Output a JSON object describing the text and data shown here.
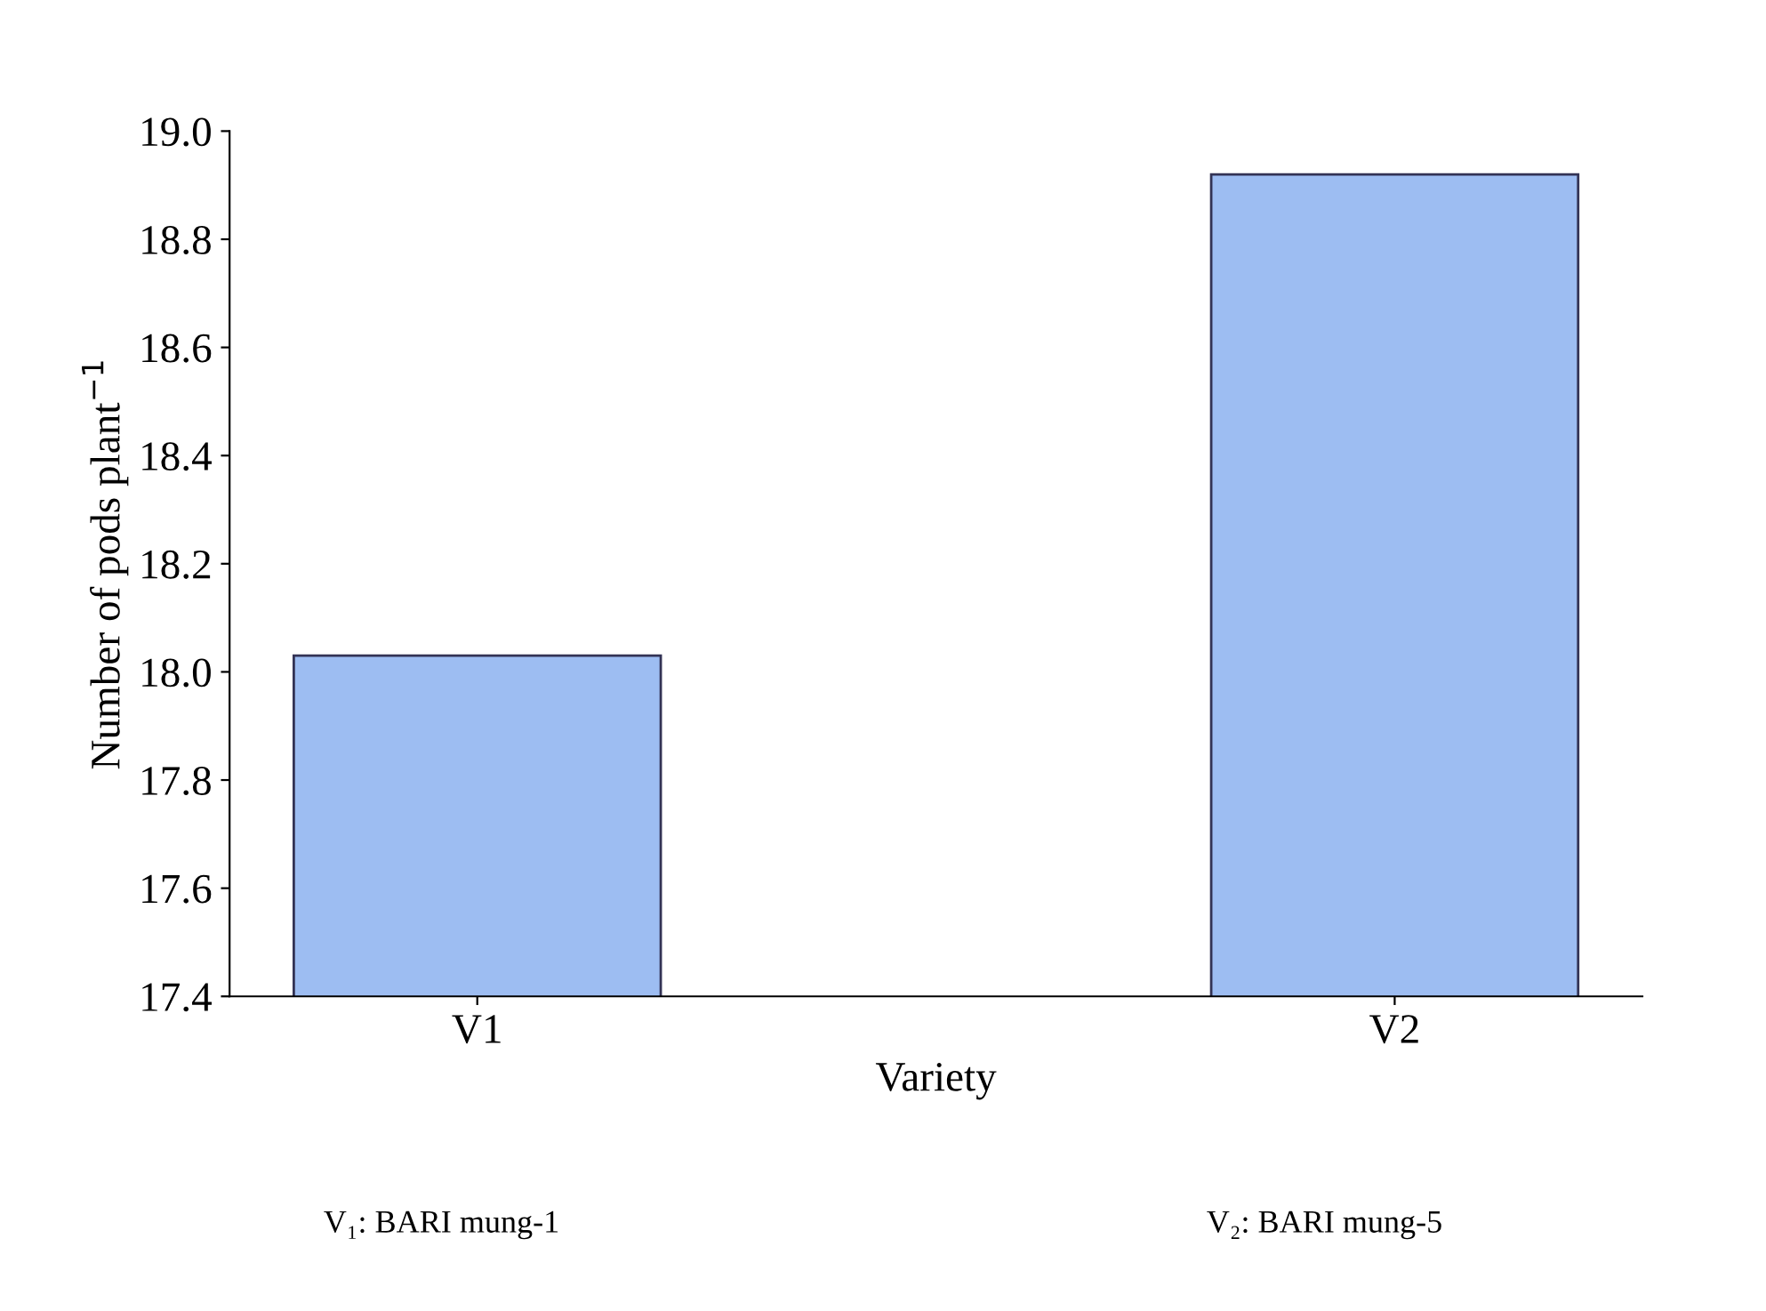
{
  "chart_data": {
    "type": "bar",
    "xlabel": "Variety",
    "ylabel": "Number of pods plant$^{−1}$",
    "categories": [
      "V1",
      "V2"
    ],
    "values": [
      18.03,
      18.92
    ],
    "color": "#9dbdf2",
    "ylim": [
      17.4,
      19.0
    ],
    "yticks": [
      17.4,
      17.6,
      17.8,
      {
        "value": 18,
        "label": "18.0"
      },
      18.2,
      18.4,
      18.6,
      18.8,
      {
        "value": 19,
        "label": "19.0"
      }
    ],
    "grid": false,
    "annotations": [
      "V₁: BARI mung-1",
      "V₂: BARI mung-5"
    ]
  }
}
